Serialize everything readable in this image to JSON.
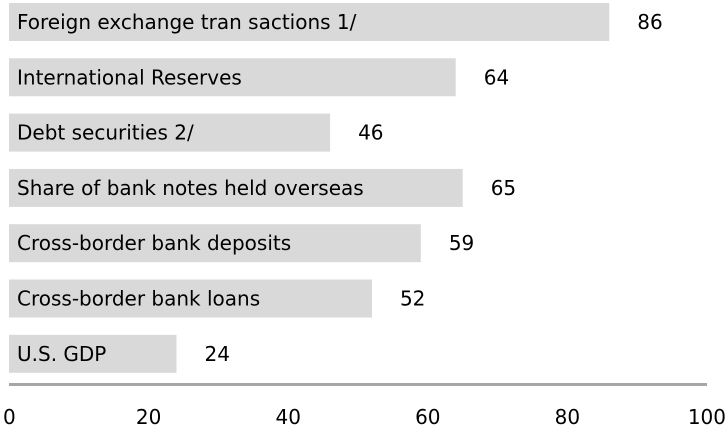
{
  "chart_data": {
    "type": "bar",
    "orientation": "horizontal",
    "categories": [
      "Foreign exchange tran sactions 1/",
      "International Reserves",
      "Debt securities 2/",
      "Share of bank notes held overseas",
      "Cross-border bank deposits",
      "Cross-border bank loans",
      "U.S. GDP"
    ],
    "values": [
      86,
      64,
      46,
      65,
      59,
      52,
      24
    ],
    "xlim": [
      0,
      100
    ],
    "xticks": [
      0,
      20,
      40,
      60,
      80,
      100
    ],
    "grid": false,
    "title": "",
    "xlabel": "",
    "ylabel": "",
    "bar_color": "#d9d9d9",
    "axis_color": "#a6a6a6"
  }
}
